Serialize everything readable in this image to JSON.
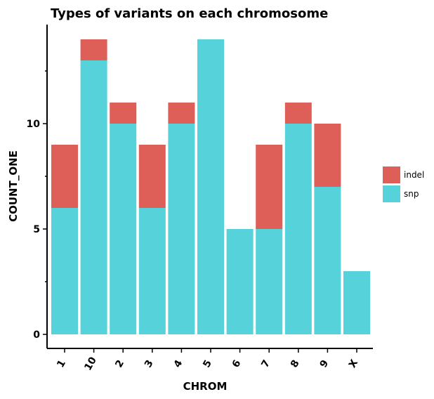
{
  "chart_data": {
    "type": "bar",
    "stacked": true,
    "title": "Types of variants on each chromosome",
    "xlabel": "CHROM",
    "ylabel": "COUNT_ONE",
    "categories": [
      "1",
      "10",
      "2",
      "3",
      "4",
      "5",
      "6",
      "7",
      "8",
      "9",
      "X"
    ],
    "series": [
      {
        "name": "snp",
        "color": "#56d2da",
        "values": [
          6,
          13,
          10,
          6,
          10,
          14,
          5,
          5,
          10,
          7,
          3
        ]
      },
      {
        "name": "indel",
        "color": "#de5f57",
        "values": [
          3,
          1,
          1,
          3,
          1,
          0,
          0,
          4,
          1,
          3,
          0
        ]
      }
    ],
    "legend_order": [
      "indel",
      "snp"
    ],
    "ylim": [
      0,
      14
    ],
    "yticks": [
      "0",
      "5",
      "10"
    ],
    "yminor_ticks": [
      2.5,
      7.5,
      12.5
    ],
    "grid": false,
    "legend_position": "right"
  }
}
